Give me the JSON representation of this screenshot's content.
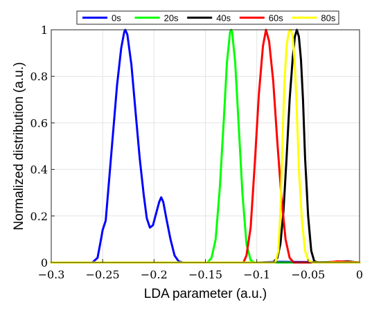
{
  "chart_data": {
    "type": "line",
    "xlabel": "LDA parameter (a.u.)",
    "ylabel": "Normalized distribution (a.u.)",
    "xlim": [
      -0.3,
      0
    ],
    "ylim": [
      0,
      1
    ],
    "x_ticks": [
      -0.3,
      -0.25,
      -0.2,
      -0.15,
      -0.1,
      -0.05,
      0
    ],
    "x_tick_labels": [
      "−0.3",
      "−0.25",
      "−0.2",
      "−0.15",
      "−0.1",
      "−0.05",
      "0"
    ],
    "y_ticks": [
      0,
      0.2,
      0.4,
      0.6,
      0.8,
      1
    ],
    "y_tick_labels": [
      "0",
      "0.2",
      "0.4",
      "0.6",
      "0.8",
      "1"
    ],
    "grid": true,
    "legend_position": "top",
    "series": [
      {
        "name": "0s",
        "color": "#0000ff",
        "points": [
          [
            -0.3,
            0
          ],
          [
            -0.26,
            0
          ],
          [
            -0.255,
            0.02
          ],
          [
            -0.252,
            0.09
          ],
          [
            -0.25,
            0.14
          ],
          [
            -0.247,
            0.18
          ],
          [
            -0.244,
            0.34
          ],
          [
            -0.24,
            0.55
          ],
          [
            -0.236,
            0.76
          ],
          [
            -0.232,
            0.92
          ],
          [
            -0.229,
            0.99
          ],
          [
            -0.228,
            1.0
          ],
          [
            -0.226,
            0.98
          ],
          [
            -0.222,
            0.85
          ],
          [
            -0.218,
            0.65
          ],
          [
            -0.214,
            0.45
          ],
          [
            -0.21,
            0.29
          ],
          [
            -0.207,
            0.19
          ],
          [
            -0.204,
            0.15
          ],
          [
            -0.201,
            0.16
          ],
          [
            -0.198,
            0.21
          ],
          [
            -0.195,
            0.26
          ],
          [
            -0.193,
            0.28
          ],
          [
            -0.191,
            0.26
          ],
          [
            -0.188,
            0.19
          ],
          [
            -0.184,
            0.1
          ],
          [
            -0.18,
            0.03
          ],
          [
            -0.176,
            0.005
          ],
          [
            -0.172,
            0
          ],
          [
            -0.1,
            0
          ],
          [
            -0.08,
            0.003
          ],
          [
            0,
            0
          ]
        ]
      },
      {
        "name": "20s",
        "color": "#00ff00",
        "points": [
          [
            -0.3,
            0
          ],
          [
            -0.148,
            0
          ],
          [
            -0.144,
            0.02
          ],
          [
            -0.14,
            0.1
          ],
          [
            -0.136,
            0.32
          ],
          [
            -0.132,
            0.62
          ],
          [
            -0.129,
            0.86
          ],
          [
            -0.126,
            0.99
          ],
          [
            -0.125,
            1.0
          ],
          [
            -0.124,
            0.99
          ],
          [
            -0.121,
            0.86
          ],
          [
            -0.118,
            0.62
          ],
          [
            -0.114,
            0.3
          ],
          [
            -0.11,
            0.08
          ],
          [
            -0.106,
            0.01
          ],
          [
            -0.102,
            0
          ],
          [
            0,
            0
          ]
        ]
      },
      {
        "name": "40s",
        "color": "#000000",
        "points": [
          [
            -0.3,
            0
          ],
          [
            -0.084,
            0
          ],
          [
            -0.08,
            0.02
          ],
          [
            -0.077,
            0.08
          ],
          [
            -0.074,
            0.22
          ],
          [
            -0.071,
            0.45
          ],
          [
            -0.068,
            0.7
          ],
          [
            -0.065,
            0.88
          ],
          [
            -0.063,
            0.97
          ],
          [
            -0.061,
            1.0
          ],
          [
            -0.059,
            0.97
          ],
          [
            -0.057,
            0.87
          ],
          [
            -0.055,
            0.7
          ],
          [
            -0.053,
            0.45
          ],
          [
            -0.05,
            0.2
          ],
          [
            -0.047,
            0.05
          ],
          [
            -0.044,
            0.005
          ],
          [
            -0.04,
            0
          ],
          [
            -0.012,
            0.005
          ],
          [
            0,
            0
          ]
        ]
      },
      {
        "name": "60s",
        "color": "#ff0000",
        "points": [
          [
            -0.3,
            0
          ],
          [
            -0.113,
            0
          ],
          [
            -0.11,
            0.03
          ],
          [
            -0.106,
            0.15
          ],
          [
            -0.102,
            0.42
          ],
          [
            -0.098,
            0.72
          ],
          [
            -0.094,
            0.93
          ],
          [
            -0.091,
            1.0
          ],
          [
            -0.088,
            0.95
          ],
          [
            -0.084,
            0.78
          ],
          [
            -0.08,
            0.52
          ],
          [
            -0.076,
            0.28
          ],
          [
            -0.072,
            0.1
          ],
          [
            -0.068,
            0.02
          ],
          [
            -0.064,
            0
          ],
          [
            -0.03,
            0
          ],
          [
            -0.022,
            0.005
          ],
          [
            0,
            0
          ]
        ]
      },
      {
        "name": "80s",
        "color": "#ffff00",
        "points": [
          [
            -0.3,
            0
          ],
          [
            -0.082,
            0
          ],
          [
            -0.079,
            0.05
          ],
          [
            -0.077,
            0.22
          ],
          [
            -0.075,
            0.52
          ],
          [
            -0.073,
            0.78
          ],
          [
            -0.071,
            0.93
          ],
          [
            -0.069,
            0.99
          ],
          [
            -0.067,
            1.0
          ],
          [
            -0.065,
            0.97
          ],
          [
            -0.063,
            0.85
          ],
          [
            -0.061,
            0.65
          ],
          [
            -0.059,
            0.4
          ],
          [
            -0.056,
            0.18
          ],
          [
            -0.053,
            0.05
          ],
          [
            -0.05,
            0.01
          ],
          [
            -0.046,
            0
          ],
          [
            0,
            0
          ]
        ]
      }
    ]
  }
}
